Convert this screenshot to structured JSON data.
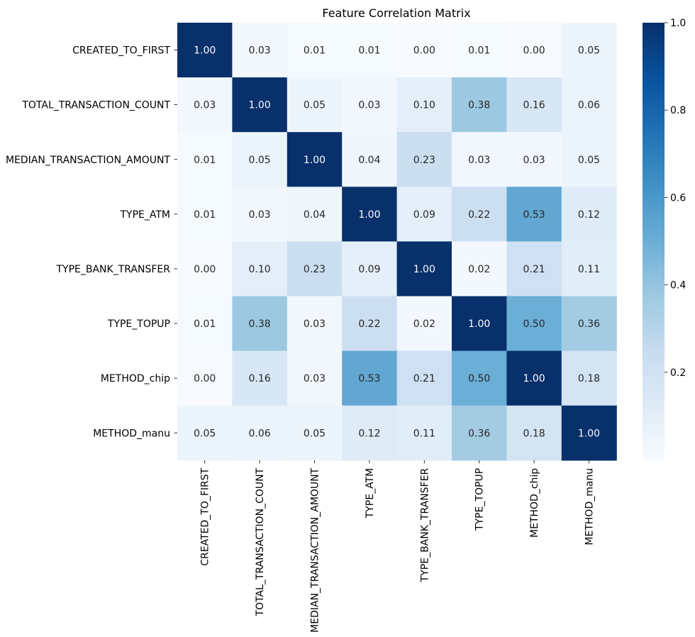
{
  "chart_data": {
    "type": "heatmap",
    "title": "Feature Correlation Matrix",
    "labels": [
      "CREATED_TO_FIRST",
      "TOTAL_TRANSACTION_COUNT",
      "MEDIAN_TRANSACTION_AMOUNT",
      "TYPE_ATM",
      "TYPE_BANK_TRANSFER",
      "TYPE_TOPUP",
      "METHOD_chip",
      "METHOD_manu"
    ],
    "matrix": [
      [
        1.0,
        0.03,
        0.01,
        0.01,
        0.0,
        0.01,
        0.0,
        0.05
      ],
      [
        0.03,
        1.0,
        0.05,
        0.03,
        0.1,
        0.38,
        0.16,
        0.06
      ],
      [
        0.01,
        0.05,
        1.0,
        0.04,
        0.23,
        0.03,
        0.03,
        0.05
      ],
      [
        0.01,
        0.03,
        0.04,
        1.0,
        0.09,
        0.22,
        0.53,
        0.12
      ],
      [
        0.0,
        0.1,
        0.23,
        0.09,
        1.0,
        0.02,
        0.21,
        0.11
      ],
      [
        0.01,
        0.38,
        0.03,
        0.22,
        0.02,
        1.0,
        0.5,
        0.36
      ],
      [
        0.0,
        0.16,
        0.03,
        0.53,
        0.21,
        0.5,
        1.0,
        0.18
      ],
      [
        0.05,
        0.06,
        0.05,
        0.12,
        0.11,
        0.36,
        0.18,
        1.0
      ]
    ],
    "value_format": "2 decimals",
    "colormap": "Blues",
    "colorbar": {
      "range": [
        0.0,
        1.0
      ],
      "ticks": [
        0.2,
        0.4,
        0.6,
        0.8,
        1.0
      ],
      "tick_labels": [
        "0.2",
        "0.4",
        "0.6",
        "0.8",
        "1.0"
      ]
    },
    "text_colors": {
      "dark": "#262626",
      "light": "#ffffff"
    },
    "xlabel": "",
    "ylabel": ""
  }
}
